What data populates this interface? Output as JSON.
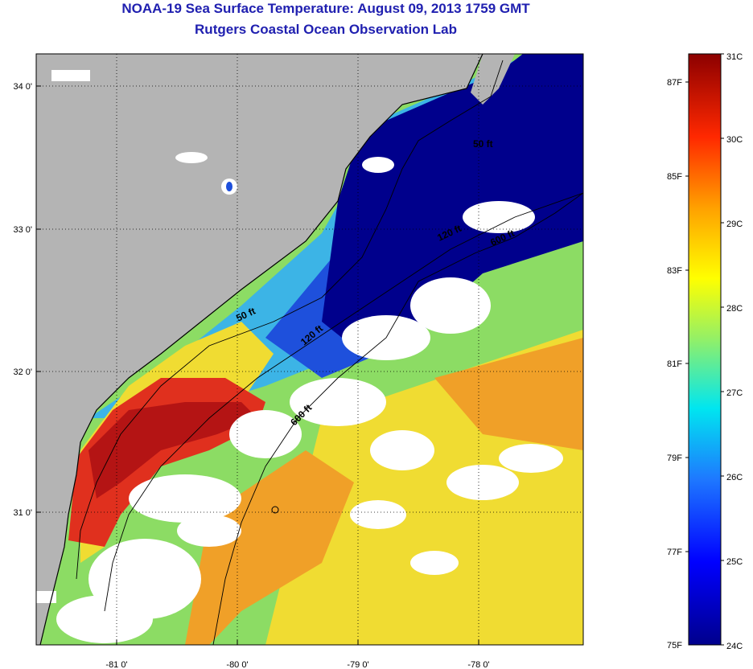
{
  "title": {
    "line1": "NOAA-19 Sea Surface Temperature:  August 09, 2013 1759 GMT",
    "line2": "Rutgers Coastal Ocean Observation Lab"
  },
  "map": {
    "lon_ticks": [
      "-81 0'",
      "-80 0'",
      "-79 0'",
      "-78 0'"
    ],
    "lat_ticks": [
      "34 0'",
      "33 0'",
      "32 0'",
      "31 0'"
    ],
    "contour_labels": [
      "50 ft",
      "50 ft",
      "120 ft",
      "120 ft",
      "600 ft",
      "600 ft"
    ],
    "colors": {
      "land": "#b4b4b4",
      "cloud": "#ffffff",
      "deep_blue": "#00008c",
      "blue": "#1e50dc",
      "cyan": "#3cb4e6",
      "green": "#8cdc64",
      "yellow": "#f0dc32",
      "orange": "#f0a028",
      "red": "#e0301e",
      "dark_red": "#b41414"
    }
  },
  "colorbar": {
    "fahrenheit": [
      "87F",
      "85F",
      "83F",
      "81F",
      "79F",
      "77F",
      "75F"
    ],
    "celsius": [
      "31C",
      "30C",
      "29C",
      "28C",
      "27C",
      "26C",
      "25C",
      "24C"
    ]
  }
}
